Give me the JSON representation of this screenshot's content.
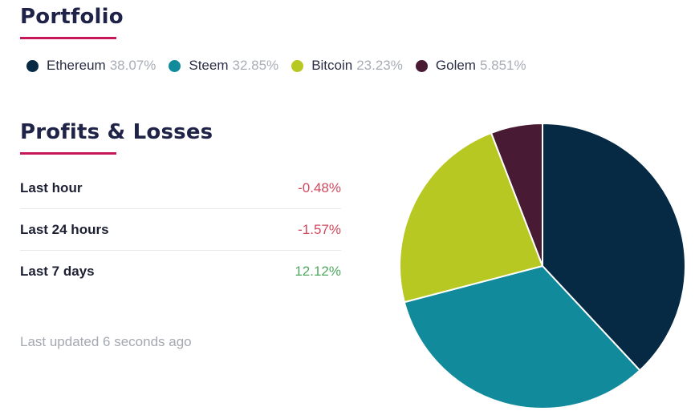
{
  "portfolio": {
    "title": "Portfolio"
  },
  "legend": [
    {
      "name": "Ethereum",
      "pct": "38.07%",
      "color": "#062944"
    },
    {
      "name": "Steem",
      "pct": "32.85%",
      "color": "#118a9c"
    },
    {
      "name": "Bitcoin",
      "pct": "23.23%",
      "color": "#b8c822"
    },
    {
      "name": "Golem",
      "pct": "5.851%",
      "color": "#481a33"
    }
  ],
  "profits_losses": {
    "title": "Profits & Losses",
    "rows": [
      {
        "label": "Last hour",
        "value": "-0.48%",
        "trend": "negative"
      },
      {
        "label": "Last 24 hours",
        "value": "-1.57%",
        "trend": "negative"
      },
      {
        "label": "Last 7 days",
        "value": "12.12%",
        "trend": "positive"
      }
    ],
    "updated": "Last updated 6 seconds ago"
  },
  "colors": {
    "accent_underline": "#c4185a",
    "negative": "#d0495c",
    "positive": "#4fa85f"
  },
  "chart_data": {
    "type": "pie",
    "categories": [
      "Ethereum",
      "Steem",
      "Bitcoin",
      "Golem"
    ],
    "values": [
      38.07,
      32.85,
      23.23,
      5.851
    ],
    "colors": [
      "#062944",
      "#118a9c",
      "#b8c822",
      "#481a33"
    ],
    "legend": "top"
  }
}
